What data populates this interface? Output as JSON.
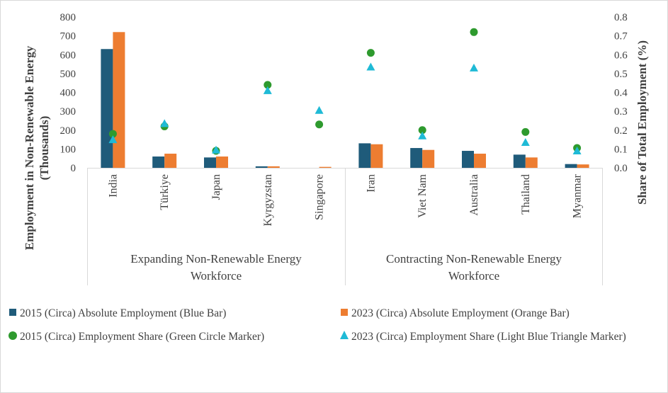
{
  "chart_data": {
    "type": "bar",
    "title": "",
    "categories": [
      "India",
      "Türkiye",
      "Japan",
      "Kyrgyzstan",
      "Singapore",
      "Iran",
      "Viet Nam",
      "Australia",
      "Thailand",
      "Myanmar"
    ],
    "groups": [
      {
        "label_lines": [
          "Expanding Non-Renewable Energy",
          "Workforce"
        ],
        "start": 0,
        "end": 4
      },
      {
        "label_lines": [
          "Contracting Non-Renewable Energy",
          "Workforce"
        ],
        "start": 5,
        "end": 9
      }
    ],
    "ylabel_left_lines": [
      "Employment in Non-Renewable Energy",
      "(Thousands)"
    ],
    "ylabel_right": "Share of Total Employment (%)",
    "ylim_left": [
      0,
      800
    ],
    "yticks_left": [
      "0",
      "100",
      "200",
      "300",
      "400",
      "500",
      "600",
      "700",
      "800"
    ],
    "ylim_right": [
      0,
      0.8
    ],
    "yticks_right": [
      "0.0",
      "0.1",
      "0.2",
      "0.3",
      "0.4",
      "0.5",
      "0.6",
      "0.7",
      "0.8"
    ],
    "series": [
      {
        "name": "2015 (Circa) Absolute Employment (Blue Bar)",
        "kind": "bar",
        "axis": "left",
        "color": "#1f5b7a",
        "values": [
          630,
          60,
          55,
          8,
          0,
          130,
          105,
          90,
          70,
          20
        ]
      },
      {
        "name": "2023 (Circa) Absolute Employment (Orange Bar)",
        "kind": "bar",
        "axis": "left",
        "color": "#ed7d31",
        "values": [
          720,
          75,
          60,
          8,
          5,
          125,
          95,
          75,
          55,
          18
        ]
      },
      {
        "name": "2015 (Circa) Employment Share (Green Circle Marker)",
        "kind": "circle",
        "axis": "right",
        "color": "#2e9a2e",
        "values": [
          0.18,
          0.22,
          0.09,
          0.44,
          0.23,
          0.61,
          0.2,
          0.72,
          0.19,
          0.105
        ]
      },
      {
        "name": "2023 (Circa) Employment Share (Light Blue Triangle Marker)",
        "kind": "triangle",
        "axis": "right",
        "color": "#1fbad6",
        "values": [
          0.15,
          0.235,
          0.095,
          0.41,
          0.305,
          0.535,
          0.17,
          0.53,
          0.135,
          0.09
        ]
      }
    ]
  }
}
